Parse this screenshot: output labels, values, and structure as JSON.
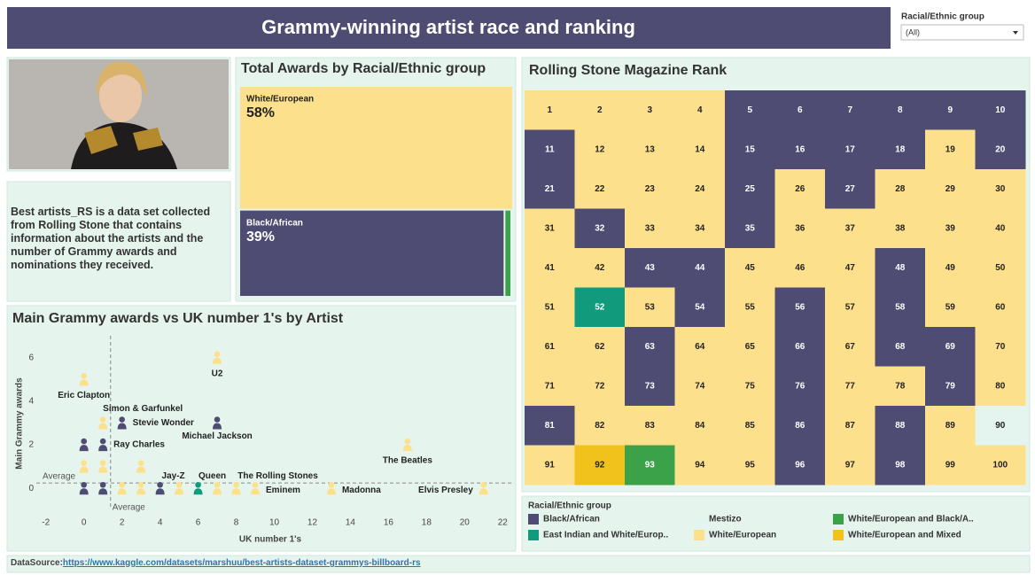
{
  "title": "Grammy-winning artist race and ranking",
  "filter": {
    "label": "Racial/Ethnic group",
    "value": "(All)"
  },
  "description": "Best artists_RS is a data set collected from Rolling Stone that contains information about the artists and the number of Grammy awards and nominations they received.",
  "datasource": {
    "label": "DataSource:",
    "url": "https://www.kaggle.com/datasets/marshuu/best-artists-dataset-grammys-billboard-rs"
  },
  "legend": {
    "title": "Racial/Ethnic group",
    "items": [
      {
        "name": "Black/African",
        "color": "#4e4c73"
      },
      {
        "name": "Mestizo",
        "color": "#e4f4ee"
      },
      {
        "name": "White/European and Black/A..",
        "color": "#3ca24a"
      },
      {
        "name": "East Indian and White/Europ..",
        "color": "#129a7d"
      },
      {
        "name": "White/European",
        "color": "#fde08c"
      },
      {
        "name": "White/European and Mixed",
        "color": "#f1c21b"
      }
    ]
  },
  "chart_data": [
    {
      "type": "treemap",
      "title": "Total Awards by Racial/Ethnic group",
      "categories": [
        "White/European",
        "Black/African",
        null
      ],
      "values": [
        58,
        39,
        1
      ],
      "value_labels": [
        "58%",
        "39%",
        null
      ],
      "colors": [
        "#fde08c",
        "#4e4c73",
        "#3ca24a"
      ]
    },
    {
      "type": "scatter",
      "title": "Main Grammy awards vs UK number 1's by  Artist",
      "xlabel": "UK number 1's",
      "ylabel": "Main Grammy awards",
      "x": [
        0,
        7,
        1,
        2,
        7,
        0,
        1,
        17,
        0,
        1,
        3,
        0,
        1,
        2,
        3,
        4,
        5,
        6,
        7,
        8,
        9,
        13,
        21
      ],
      "values": [
        5,
        6,
        3,
        3,
        3,
        2,
        2,
        2,
        1,
        1,
        1,
        0,
        0,
        0,
        0,
        0,
        0,
        0,
        0,
        0,
        0,
        0,
        0
      ],
      "groups": [
        4,
        4,
        4,
        0,
        0,
        0,
        0,
        4,
        4,
        4,
        4,
        0,
        0,
        4,
        4,
        0,
        4,
        3,
        4,
        4,
        4,
        4,
        4
      ],
      "labels": [
        "Eric Clapton",
        "U2",
        "Simon & Garfunkel",
        "Stevie Wonder",
        "Michael Jackson",
        null,
        "Ray Charles",
        "The Beatles",
        null,
        null,
        null,
        null,
        null,
        null,
        null,
        "Jay-Z",
        null,
        "Queen",
        null,
        "The Rolling Stones",
        "Eminem",
        "Madonna",
        "Elvis Presley"
      ],
      "xlim": [
        -2.5,
        22.5
      ],
      "ylim": [
        -0.6,
        6.6
      ],
      "xticks": [
        -2,
        0,
        2,
        4,
        6,
        8,
        10,
        12,
        14,
        16,
        18,
        20,
        22
      ],
      "yticks": [
        0,
        2,
        4,
        6
      ],
      "average": {
        "x": 1.4,
        "y": 0.25,
        "label": "Average"
      }
    },
    {
      "type": "grid",
      "title": "Rolling Stone Magazine Rank",
      "values": [
        1,
        2,
        3,
        4,
        5,
        6,
        7,
        8,
        9,
        10,
        11,
        12,
        13,
        14,
        15,
        16,
        17,
        18,
        19,
        20,
        21,
        22,
        23,
        24,
        25,
        26,
        27,
        28,
        29,
        30,
        31,
        32,
        33,
        34,
        35,
        36,
        37,
        38,
        39,
        40,
        41,
        42,
        43,
        44,
        45,
        46,
        47,
        48,
        49,
        50,
        51,
        52,
        53,
        54,
        55,
        56,
        57,
        58,
        59,
        60,
        61,
        62,
        63,
        64,
        65,
        66,
        67,
        68,
        69,
        70,
        71,
        72,
        73,
        74,
        75,
        76,
        77,
        78,
        79,
        80,
        81,
        82,
        83,
        84,
        85,
        86,
        87,
        88,
        89,
        90,
        91,
        92,
        93,
        94,
        95,
        96,
        97,
        98,
        99,
        100
      ],
      "groups": [
        4,
        4,
        4,
        4,
        0,
        0,
        0,
        0,
        0,
        0,
        0,
        4,
        4,
        4,
        0,
        0,
        0,
        0,
        4,
        0,
        0,
        4,
        4,
        4,
        0,
        4,
        0,
        4,
        4,
        4,
        4,
        0,
        4,
        4,
        0,
        4,
        4,
        4,
        4,
        4,
        4,
        4,
        0,
        0,
        4,
        4,
        4,
        0,
        4,
        4,
        4,
        3,
        4,
        0,
        4,
        0,
        4,
        0,
        4,
        4,
        4,
        4,
        0,
        4,
        4,
        0,
        4,
        0,
        0,
        4,
        4,
        4,
        0,
        4,
        4,
        0,
        4,
        4,
        0,
        4,
        0,
        4,
        4,
        4,
        4,
        0,
        4,
        0,
        4,
        1,
        4,
        5,
        2,
        4,
        4,
        0,
        4,
        0,
        4,
        4
      ]
    }
  ]
}
